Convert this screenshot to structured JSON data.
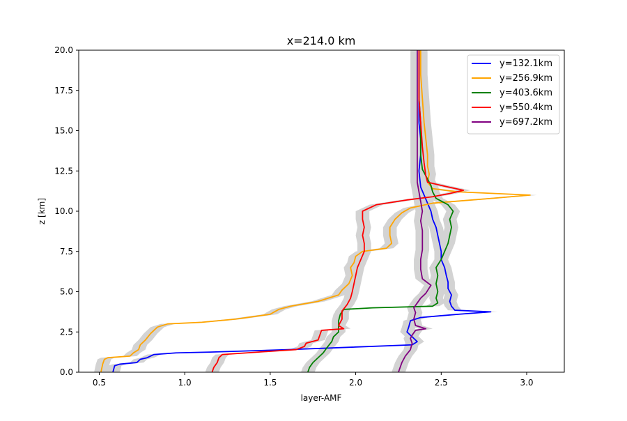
{
  "chart_data": {
    "type": "line",
    "title": "x=214.0 km",
    "xlabel": "layer-AMF",
    "ylabel": "z [km]",
    "xlim": [
      0.38,
      3.22
    ],
    "ylim": [
      0,
      20
    ],
    "xticks": [
      0.5,
      1.0,
      1.5,
      2.0,
      2.5,
      3.0
    ],
    "xtick_labels": [
      "0.5",
      "1.0",
      "1.5",
      "2.0",
      "2.5",
      "3.0"
    ],
    "yticks": [
      0,
      2.5,
      5,
      7.5,
      10,
      12.5,
      15,
      17.5,
      20
    ],
    "ytick_labels": [
      "0.0",
      "2.5",
      "5.0",
      "7.5",
      "10.0",
      "12.5",
      "15.0",
      "17.5",
      "20.0"
    ],
    "grid": false,
    "legend_position": "top-right",
    "band_color": "#d3d3d3",
    "band_halfwidth": 0.04,
    "series": [
      {
        "name": "y=132.1km",
        "color": "#0000ff",
        "points": [
          [
            0.58,
            0
          ],
          [
            0.59,
            0.4
          ],
          [
            0.62,
            0.5
          ],
          [
            0.72,
            0.6
          ],
          [
            0.74,
            0.8
          ],
          [
            0.78,
            0.9
          ],
          [
            0.82,
            1.1
          ],
          [
            0.95,
            1.2
          ],
          [
            1.15,
            1.25
          ],
          [
            1.6,
            1.4
          ],
          [
            2.33,
            1.7
          ],
          [
            2.36,
            1.9
          ],
          [
            2.33,
            2.2
          ],
          [
            2.3,
            2.5
          ],
          [
            2.31,
            2.8
          ],
          [
            2.32,
            3.2
          ],
          [
            2.38,
            3.4
          ],
          [
            2.6,
            3.6
          ],
          [
            2.79,
            3.75
          ],
          [
            2.58,
            3.85
          ],
          [
            2.56,
            4.1
          ],
          [
            2.55,
            4.4
          ],
          [
            2.56,
            4.8
          ],
          [
            2.54,
            5.2
          ],
          [
            2.54,
            5.6
          ],
          [
            2.53,
            6.0
          ],
          [
            2.52,
            6.5
          ],
          [
            2.5,
            7.0
          ],
          [
            2.5,
            7.5
          ],
          [
            2.49,
            8.0
          ],
          [
            2.48,
            8.5
          ],
          [
            2.47,
            9.0
          ],
          [
            2.45,
            9.5
          ],
          [
            2.44,
            10.0
          ],
          [
            2.42,
            10.5
          ],
          [
            2.4,
            11.0
          ],
          [
            2.38,
            11.5
          ],
          [
            2.37,
            12.5
          ],
          [
            2.38,
            13.5
          ],
          [
            2.38,
            14.5
          ],
          [
            2.37,
            15.5
          ],
          [
            2.37,
            17.0
          ],
          [
            2.37,
            18.5
          ],
          [
            2.37,
            20
          ]
        ]
      },
      {
        "name": "y=256.9km",
        "color": "#ffa500",
        "points": [
          [
            0.51,
            0
          ],
          [
            0.52,
            0.5
          ],
          [
            0.53,
            0.8
          ],
          [
            0.55,
            0.9
          ],
          [
            0.68,
            1.0
          ],
          [
            0.7,
            1.2
          ],
          [
            0.73,
            1.4
          ],
          [
            0.74,
            1.7
          ],
          [
            0.77,
            2.0
          ],
          [
            0.8,
            2.4
          ],
          [
            0.84,
            2.8
          ],
          [
            0.9,
            3.0
          ],
          [
            1.1,
            3.1
          ],
          [
            1.3,
            3.3
          ],
          [
            1.5,
            3.6
          ],
          [
            1.55,
            3.9
          ],
          [
            1.62,
            4.1
          ],
          [
            1.78,
            4.4
          ],
          [
            1.9,
            4.8
          ],
          [
            1.92,
            5.1
          ],
          [
            1.96,
            5.5
          ],
          [
            1.98,
            6.0
          ],
          [
            1.97,
            6.5
          ],
          [
            1.99,
            6.8
          ],
          [
            2.0,
            7.2
          ],
          [
            2.04,
            7.5
          ],
          [
            2.18,
            7.7
          ],
          [
            2.21,
            8.0
          ],
          [
            2.2,
            8.5
          ],
          [
            2.2,
            9.0
          ],
          [
            2.23,
            9.5
          ],
          [
            2.27,
            9.9
          ],
          [
            2.32,
            10.2
          ],
          [
            2.45,
            10.5
          ],
          [
            2.8,
            10.8
          ],
          [
            3.02,
            11.0
          ],
          [
            2.6,
            11.2
          ],
          [
            2.45,
            11.4
          ],
          [
            2.42,
            11.8
          ],
          [
            2.43,
            12.3
          ],
          [
            2.42,
            12.8
          ],
          [
            2.42,
            13.5
          ],
          [
            2.41,
            14.5
          ],
          [
            2.4,
            15.5
          ],
          [
            2.39,
            17.0
          ],
          [
            2.38,
            18.5
          ],
          [
            2.38,
            20
          ]
        ]
      },
      {
        "name": "y=403.6km",
        "color": "#008000",
        "points": [
          [
            1.72,
            0
          ],
          [
            1.73,
            0.3
          ],
          [
            1.75,
            0.6
          ],
          [
            1.79,
            1.0
          ],
          [
            1.81,
            1.2
          ],
          [
            1.83,
            1.5
          ],
          [
            1.86,
            1.9
          ],
          [
            1.87,
            2.2
          ],
          [
            1.9,
            2.5
          ],
          [
            1.9,
            2.8
          ],
          [
            1.9,
            3.2
          ],
          [
            1.91,
            3.6
          ],
          [
            1.93,
            3.9
          ],
          [
            2.1,
            4.0
          ],
          [
            2.45,
            4.1
          ],
          [
            2.48,
            4.3
          ],
          [
            2.47,
            4.6
          ],
          [
            2.48,
            5.0
          ],
          [
            2.47,
            5.5
          ],
          [
            2.48,
            6.0
          ],
          [
            2.47,
            6.5
          ],
          [
            2.5,
            7.0
          ],
          [
            2.52,
            7.5
          ],
          [
            2.54,
            8.0
          ],
          [
            2.55,
            8.5
          ],
          [
            2.56,
            9.0
          ],
          [
            2.55,
            9.5
          ],
          [
            2.57,
            10.0
          ],
          [
            2.54,
            10.4
          ],
          [
            2.47,
            10.8
          ],
          [
            2.45,
            11.2
          ],
          [
            2.44,
            11.6
          ],
          [
            2.42,
            12.0
          ],
          [
            2.39,
            12.6
          ],
          [
            2.38,
            13.5
          ],
          [
            2.38,
            14.5
          ],
          [
            2.38,
            15.5
          ],
          [
            2.37,
            17.0
          ],
          [
            2.37,
            18.5
          ],
          [
            2.37,
            20
          ]
        ]
      },
      {
        "name": "y=550.4km",
        "color": "#ff0000",
        "points": [
          [
            1.16,
            0
          ],
          [
            1.17,
            0.3
          ],
          [
            1.19,
            0.6
          ],
          [
            1.2,
            0.9
          ],
          [
            1.22,
            1.1
          ],
          [
            1.5,
            1.3
          ],
          [
            1.65,
            1.4
          ],
          [
            1.7,
            1.6
          ],
          [
            1.71,
            1.8
          ],
          [
            1.78,
            2.0
          ],
          [
            1.79,
            2.3
          ],
          [
            1.8,
            2.6
          ],
          [
            1.93,
            2.7
          ],
          [
            1.9,
            2.9
          ],
          [
            1.92,
            3.3
          ],
          [
            1.92,
            3.8
          ],
          [
            1.95,
            4.2
          ],
          [
            1.97,
            4.6
          ],
          [
            1.98,
            5.0
          ],
          [
            1.99,
            5.5
          ],
          [
            2.0,
            6.0
          ],
          [
            2.01,
            6.5
          ],
          [
            2.03,
            7.0
          ],
          [
            2.05,
            7.5
          ],
          [
            2.05,
            8.0
          ],
          [
            2.04,
            8.5
          ],
          [
            2.05,
            9.0
          ],
          [
            2.04,
            9.5
          ],
          [
            2.04,
            10.0
          ],
          [
            2.12,
            10.4
          ],
          [
            2.3,
            10.7
          ],
          [
            2.45,
            10.9
          ],
          [
            2.55,
            11.1
          ],
          [
            2.63,
            11.3
          ],
          [
            2.5,
            11.6
          ],
          [
            2.42,
            11.8
          ],
          [
            2.41,
            12.2
          ],
          [
            2.4,
            13.0
          ],
          [
            2.39,
            14.0
          ],
          [
            2.38,
            15.5
          ],
          [
            2.37,
            17.0
          ],
          [
            2.37,
            18.5
          ],
          [
            2.37,
            20
          ]
        ]
      },
      {
        "name": "y=697.2km",
        "color": "#800080",
        "points": [
          [
            2.25,
            0
          ],
          [
            2.26,
            0.3
          ],
          [
            2.27,
            0.6
          ],
          [
            2.29,
            1.0
          ],
          [
            2.32,
            1.4
          ],
          [
            2.33,
            1.8
          ],
          [
            2.32,
            2.1
          ],
          [
            2.33,
            2.3
          ],
          [
            2.35,
            2.6
          ],
          [
            2.41,
            2.7
          ],
          [
            2.35,
            2.9
          ],
          [
            2.34,
            3.3
          ],
          [
            2.35,
            3.7
          ],
          [
            2.34,
            4.0
          ],
          [
            2.36,
            4.3
          ],
          [
            2.38,
            4.6
          ],
          [
            2.41,
            4.9
          ],
          [
            2.44,
            5.4
          ],
          [
            2.39,
            5.8
          ],
          [
            2.38,
            6.4
          ],
          [
            2.38,
            7.0
          ],
          [
            2.39,
            7.6
          ],
          [
            2.39,
            8.2
          ],
          [
            2.39,
            8.8
          ],
          [
            2.38,
            9.4
          ],
          [
            2.39,
            10.0
          ],
          [
            2.38,
            10.6
          ],
          [
            2.37,
            11.2
          ],
          [
            2.36,
            11.8
          ],
          [
            2.36,
            12.5
          ],
          [
            2.36,
            13.5
          ],
          [
            2.36,
            14.5
          ],
          [
            2.36,
            15.5
          ],
          [
            2.36,
            17.0
          ],
          [
            2.36,
            18.5
          ],
          [
            2.36,
            20
          ]
        ]
      }
    ]
  }
}
